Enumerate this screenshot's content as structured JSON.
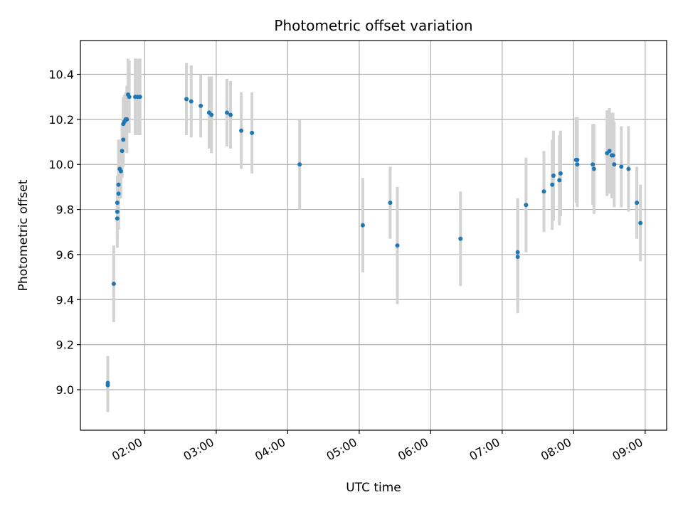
{
  "chart_data": {
    "type": "scatter",
    "title": "Photometric offset variation",
    "xlabel": "UTC time",
    "ylabel": "Photometric offset",
    "x_unit": "UTC time of day (HH:MM)",
    "xlim": [
      "01:06",
      "09:18"
    ],
    "ylim": [
      8.82,
      10.55
    ],
    "grid": true,
    "x_ticks": [
      "02:00",
      "03:00",
      "04:00",
      "05:00",
      "06:00",
      "07:00",
      "08:00",
      "09:00"
    ],
    "y_ticks": [
      9.0,
      9.2,
      9.4,
      9.6,
      9.8,
      10.0,
      10.2,
      10.4
    ],
    "y_tick_labels": [
      "9.0",
      "9.2",
      "9.4",
      "9.6",
      "9.8",
      "10.0",
      "10.2",
      "10.4"
    ],
    "colors": {
      "point": "#1f77b4",
      "errorbar": "#d3d3d3",
      "grid": "#b0b0b0"
    },
    "series": [
      {
        "x": [
          "01:29",
          "01:29",
          "01:34",
          "01:37",
          "01:37",
          "01:37",
          "01:38",
          "01:38",
          "01:39",
          "01:40",
          "01:41",
          "01:42",
          "01:42",
          "01:43",
          "01:44",
          "01:45",
          "01:46",
          "01:47",
          "01:52",
          "01:54",
          "01:56",
          "02:35",
          "02:39",
          "02:47",
          "02:54",
          "02:56",
          "03:09",
          "03:12",
          "03:21",
          "03:30",
          "04:10",
          "05:03",
          "05:26",
          "05:32",
          "06:25",
          "07:13",
          "07:13",
          "07:20",
          "07:35",
          "07:42",
          "07:43",
          "07:48",
          "07:49",
          "08:02",
          "08:03",
          "08:03",
          "08:16",
          "08:17",
          "08:28",
          "08:30",
          "08:32",
          "08:33",
          "08:34",
          "08:40",
          "08:46",
          "08:53",
          "08:56"
        ],
        "y": [
          9.02,
          9.03,
          9.47,
          9.76,
          9.79,
          9.83,
          9.87,
          9.91,
          9.98,
          9.97,
          10.06,
          10.11,
          10.18,
          10.19,
          10.2,
          10.2,
          10.31,
          10.3,
          10.3,
          10.3,
          10.3,
          10.29,
          10.28,
          10.26,
          10.23,
          10.22,
          10.23,
          10.22,
          10.15,
          10.14,
          10.0,
          9.73,
          9.83,
          9.64,
          9.67,
          9.59,
          9.61,
          9.82,
          9.88,
          9.91,
          9.95,
          9.93,
          9.96,
          10.02,
          10.02,
          10.0,
          10.0,
          9.98,
          10.05,
          10.06,
          10.04,
          10.04,
          10.0,
          9.99,
          9.98,
          9.83,
          9.74
        ],
        "yerr": [
          0.12,
          0.12,
          0.17,
          0.13,
          0.13,
          0.12,
          0.12,
          0.2,
          0.13,
          0.12,
          0.12,
          0.12,
          0.12,
          0.12,
          0.12,
          0.15,
          0.16,
          0.16,
          0.17,
          0.17,
          0.17,
          0.16,
          0.16,
          0.14,
          0.16,
          0.17,
          0.15,
          0.15,
          0.17,
          0.18,
          0.2,
          0.21,
          0.16,
          0.26,
          0.21,
          0.25,
          0.24,
          0.21,
          0.18,
          0.2,
          0.2,
          0.2,
          0.19,
          0.19,
          0.19,
          0.19,
          0.18,
          0.2,
          0.19,
          0.19,
          0.19,
          0.19,
          0.19,
          0.18,
          0.19,
          0.16,
          0.17
        ]
      }
    ]
  }
}
